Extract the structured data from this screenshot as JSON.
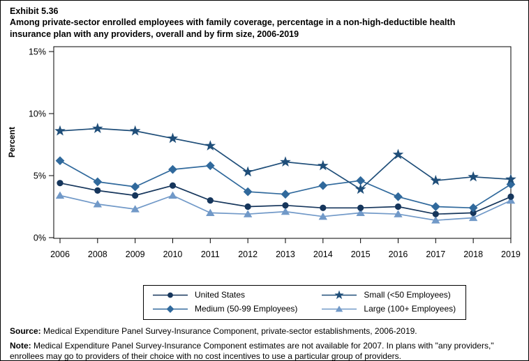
{
  "header": {
    "exhibit": "Exhibit 5.36",
    "title": "Among private-sector enrolled employees with family coverage, percentage in a non-high-deductible health insurance plan with any providers, overall and by firm size, 2006-2019"
  },
  "chart_data": {
    "type": "line",
    "title": "Among private-sector enrolled employees with family coverage, percentage in a non-high-deductible health insurance plan with any providers, overall and by firm size, 2006-2019",
    "xlabel": "",
    "ylabel": "Percent",
    "ylim": [
      0,
      15
    ],
    "yticks": [
      0,
      5,
      10,
      15
    ],
    "ytick_labels": [
      "0%",
      "5%",
      "10%",
      "15%"
    ],
    "grid": false,
    "legend_position": "bottom",
    "note_missing_year": "2007",
    "categories": [
      "2006",
      "2008",
      "2009",
      "2010",
      "2011",
      "2012",
      "2013",
      "2014",
      "2015",
      "2016",
      "2017",
      "2018",
      "2019"
    ],
    "series": [
      {
        "name": "United States",
        "marker": "circle",
        "color": "#16365c",
        "values": [
          4.4,
          3.8,
          3.4,
          4.2,
          3.0,
          2.5,
          2.6,
          2.4,
          2.4,
          2.5,
          1.9,
          2.0,
          3.3
        ]
      },
      {
        "name": "Small (<50 Employees)",
        "marker": "star",
        "color": "#1f4e79",
        "values": [
          8.6,
          8.8,
          8.6,
          8.0,
          7.4,
          5.3,
          6.1,
          5.8,
          3.9,
          6.7,
          4.6,
          4.9,
          4.7
        ]
      },
      {
        "name": "Medium (50-99 Employees)",
        "marker": "diamond",
        "color": "#30699c",
        "values": [
          6.2,
          4.5,
          4.1,
          5.5,
          5.8,
          3.7,
          3.5,
          4.2,
          4.6,
          3.3,
          2.5,
          2.4,
          4.3
        ]
      },
      {
        "name": "Large (100+ Employees)",
        "marker": "triangle",
        "color": "#7199c8",
        "values": [
          3.4,
          2.7,
          2.3,
          3.4,
          2.0,
          1.9,
          2.1,
          1.7,
          2.0,
          1.9,
          1.4,
          1.6,
          3.0
        ]
      }
    ],
    "legend_order": [
      0,
      1,
      2,
      3
    ]
  },
  "footer": {
    "source_label": "Source:",
    "source_text": " Medical Expenditure Panel Survey-Insurance Component, private-sector establishments, 2006-2019.",
    "note_label": "Note:",
    "note_text": " Medical Expenditure Panel Survey-Insurance Component estimates are not available for 2007. In plans with \"any providers,\" enrollees may go to providers of their choice with no cost incentives to use a particular group of providers."
  }
}
